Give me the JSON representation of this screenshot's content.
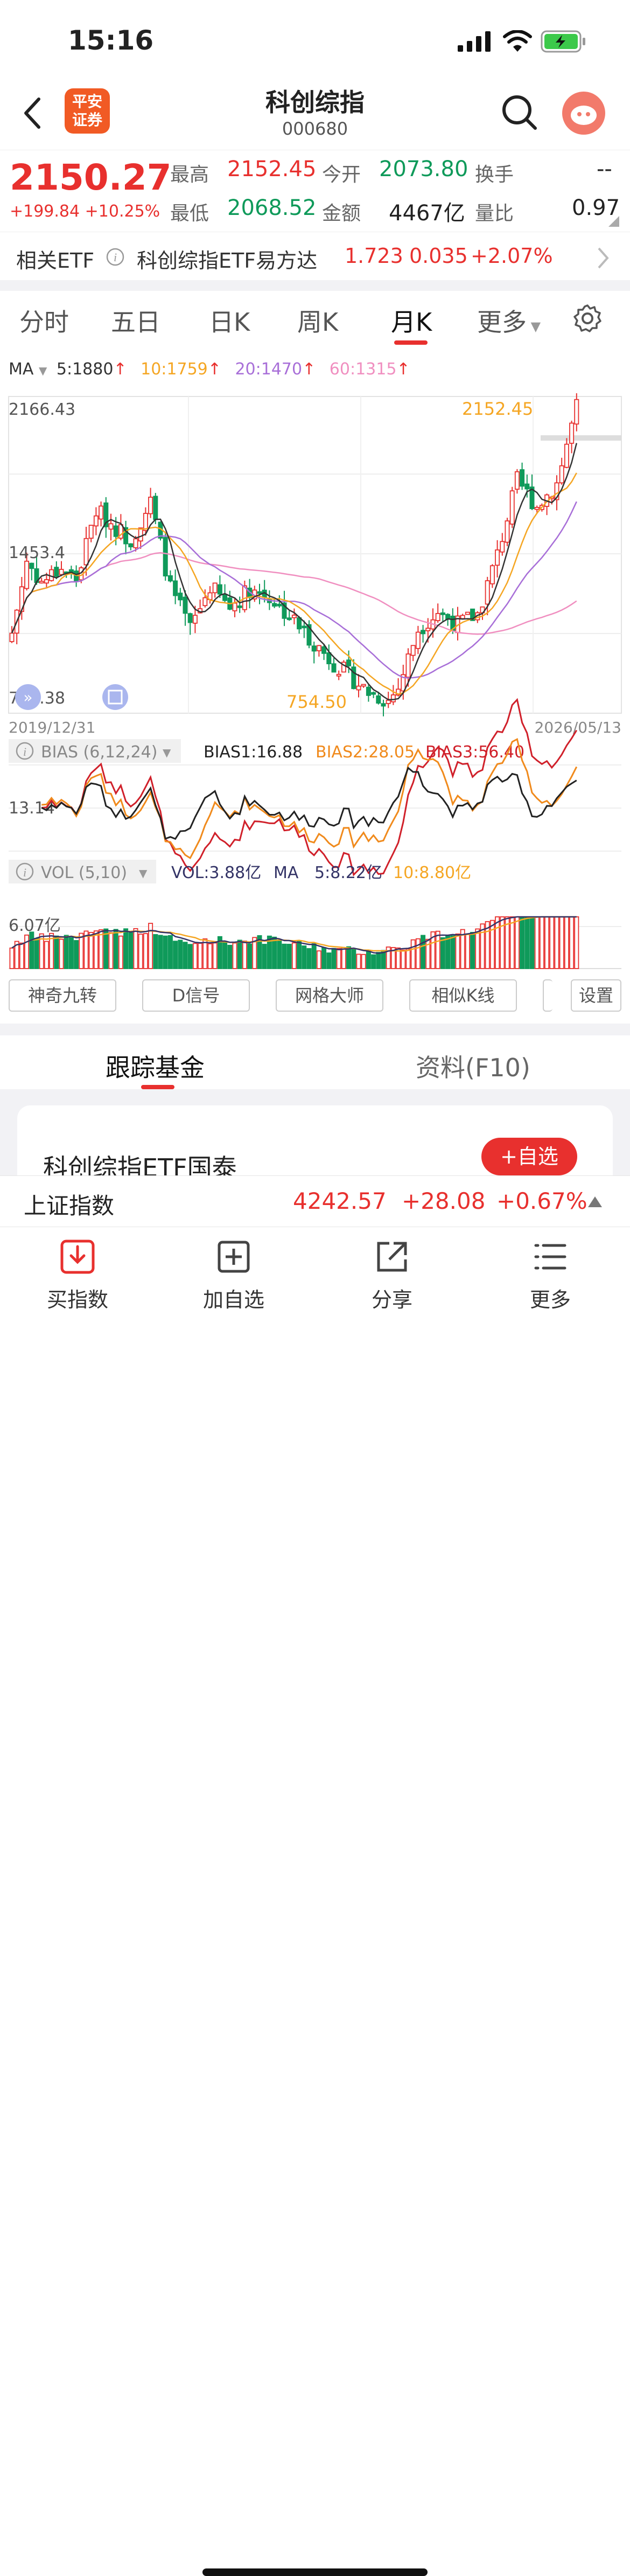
{
  "status_bar": {
    "time": "15:16"
  },
  "header": {
    "logo_text": "平安证券",
    "title": "科创综指",
    "code": "000680"
  },
  "quote": {
    "price": "2150.27",
    "change": "+199.84",
    "change_pct": "+10.25%",
    "high_label": "最高",
    "high": "2152.45",
    "low_label": "最低",
    "low": "2068.52",
    "open_label": "今开",
    "open": "2073.80",
    "amount_label": "金额",
    "amount": "4467亿",
    "turnover_label": "换手",
    "turnover": "--",
    "volume_ratio_label": "量比",
    "volume_ratio": "0.97"
  },
  "etf_row": {
    "label": "相关ETF",
    "name": "科创综指ETF易方达",
    "price": "1.723",
    "change": "0.035",
    "change_pct": "+2.07%"
  },
  "tabs": [
    {
      "label": "分时"
    },
    {
      "label": "五日"
    },
    {
      "label": "日K"
    },
    {
      "label": "周K"
    },
    {
      "label": "月K"
    },
    {
      "label": "更多"
    }
  ],
  "active_tab": "月K",
  "ma_legend": {
    "label": "MA",
    "ma5": "5:1880",
    "ma10": "10:1759",
    "ma20": "20:1470",
    "ma60": "60:1315",
    "colors": {
      "ma5": "#333333",
      "ma10": "#f5a623",
      "ma20": "#a86fd8",
      "ma60": "#f08fc0"
    }
  },
  "kline": {
    "top_label": "2166.43",
    "mid_label": "1453.4",
    "bottom_label": "740.38",
    "high_marker": "2152.45",
    "low_marker": "754.50",
    "start_date": "2019/12/31",
    "end_date": "2026/05/13"
  },
  "bias": {
    "title": "BIAS (6,12,24)",
    "bias1": "BIAS1:16.88",
    "bias2": "BIAS2:28.05",
    "bias3": "BIAS3:56.40",
    "axis_label": "13.14"
  },
  "vol": {
    "title": "VOL (5,10)",
    "vol": "VOL:3.88亿",
    "ma_label": "MA",
    "ma5": "5:8.22亿",
    "ma10": "10:8.80亿",
    "axis_label": "6.07亿"
  },
  "tool_buttons": [
    "神奇九转",
    "D信号",
    "网格大师",
    "相似K线"
  ],
  "settings_button": "设置",
  "sub_tabs": [
    "跟踪基金",
    "资料(F10)"
  ],
  "fund_card": {
    "name": "科创综指ETF国泰",
    "add_button": "+自选"
  },
  "index_bar": {
    "name": "上证指数",
    "price": "4242.57",
    "change": "+28.08",
    "change_pct": "+0.67%"
  },
  "bottom_nav": [
    {
      "label": "买指数",
      "icon": "download-icon"
    },
    {
      "label": "加自选",
      "icon": "add-box-icon"
    },
    {
      "label": "分享",
      "icon": "share-icon"
    },
    {
      "label": "更多",
      "icon": "menu-icon"
    }
  ]
}
